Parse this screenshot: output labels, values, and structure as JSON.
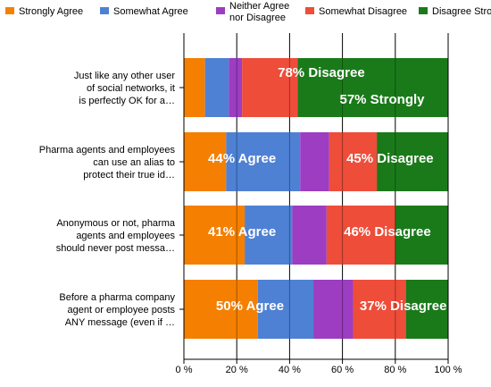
{
  "chart_data": {
    "type": "bar",
    "orientation": "horizontal",
    "stacked": true,
    "categories": [
      [
        "Just like any other user",
        "of social networks, it",
        "is perfectly OK for a…"
      ],
      [
        "Pharma agents and employees",
        "can use an alias to",
        "protect their true id…"
      ],
      [
        "Anonymous or not, pharma",
        "agents and employees",
        "should never post messa…"
      ],
      [
        "Before a pharma company",
        "agent or employee posts",
        "ANY message (even if …"
      ]
    ],
    "series": [
      {
        "name": "Strongly Agree",
        "color": "#F57F00",
        "values": [
          8,
          16,
          23,
          28
        ]
      },
      {
        "name": "Somewhat Agree",
        "color": "#4E81D4",
        "values": [
          9,
          28,
          18,
          21
        ]
      },
      {
        "name": [
          "Neither Agree",
          "nor Disagree"
        ],
        "color": "#9C3DC2",
        "values": [
          5,
          11,
          13,
          15
        ]
      },
      {
        "name": "Somewhat Disagree",
        "color": "#EE4D3A",
        "values": [
          21,
          18,
          26,
          20
        ]
      },
      {
        "name": "Disagree Strongly",
        "color": "#1A7A1A",
        "values": [
          57,
          27,
          20,
          16
        ]
      }
    ],
    "annotations": [
      {
        "bar": 0,
        "text": "78% Disagree",
        "at": 52
      },
      {
        "bar": 0,
        "text": "57% Strongly",
        "at": 75
      },
      {
        "bar": 1,
        "text": "44% Agree",
        "at": 22
      },
      {
        "bar": 1,
        "text": "45% Disagree",
        "at": 78
      },
      {
        "bar": 2,
        "text": "41% Agree",
        "at": 22
      },
      {
        "bar": 2,
        "text": "46% Disagree",
        "at": 77
      },
      {
        "bar": 3,
        "text": "50% Agree",
        "at": 25
      },
      {
        "bar": 3,
        "text": "37% Disagree",
        "at": 83
      }
    ],
    "xticks": [
      "0 %",
      "20 %",
      "40 %",
      "60 %",
      "80 %",
      "100 %"
    ],
    "xlim": [
      0,
      100
    ],
    "grid": true,
    "legend_position": "top"
  }
}
